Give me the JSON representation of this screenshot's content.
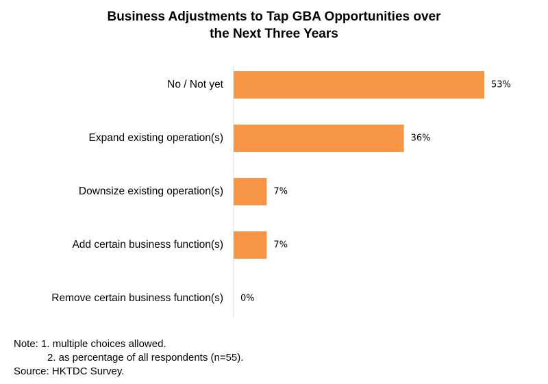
{
  "chart_data": {
    "type": "bar",
    "orientation": "horizontal",
    "title_lines": [
      "Business Adjustments to Tap GBA Opportunities over",
      "the Next Three Years"
    ],
    "categories": [
      "No / Not yet",
      "Expand existing operation(s)",
      "Downsize existing operation(s)",
      "Add certain business function(s)",
      "Remove certain business function(s)"
    ],
    "values": [
      53,
      36,
      7,
      7,
      0
    ],
    "value_labels": [
      "53%",
      "36%",
      "7%",
      "7%",
      "0%"
    ],
    "unit": "%",
    "xlim": [
      0,
      53
    ],
    "grid": false,
    "legend": "none",
    "bar_color": "#F79646"
  },
  "notes": {
    "note_line": "Note: 1. multiple choices allowed.",
    "note_line_2": "2. as percentage of all respondents (n=55).",
    "source_line": "Source: HKTDC Survey."
  },
  "colors": {
    "bar": "#F79646",
    "axis": "#D9D9D9",
    "text": "#000000"
  }
}
